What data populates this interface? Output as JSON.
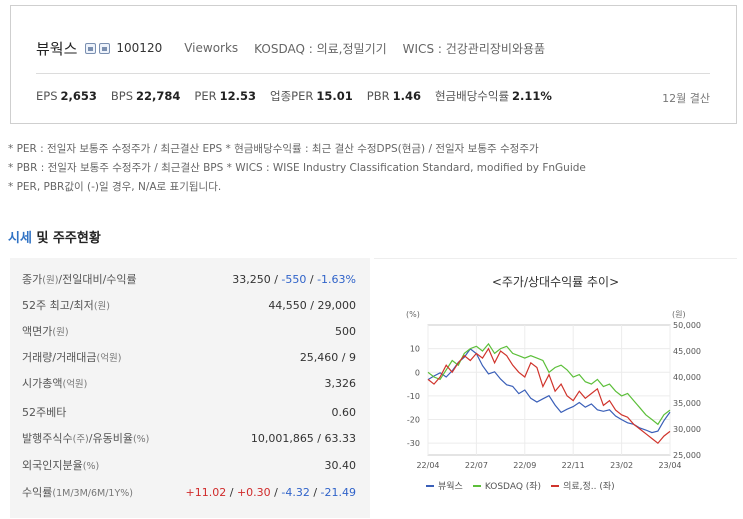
{
  "header": {
    "corp_name": "뷰웍스",
    "code": "100120",
    "eng_name": "Vieworks",
    "market": "KOSDAQ : 의료,정밀기기",
    "wics": "WICS : 건강관리장비와용품",
    "fiscal": "12월 결산",
    "metrics": [
      {
        "label": "EPS",
        "value": "2,653"
      },
      {
        "label": "BPS",
        "value": "22,784"
      },
      {
        "label": "PER",
        "value": "12.53"
      },
      {
        "label": "업종PER",
        "value": "15.01"
      },
      {
        "label": "PBR",
        "value": "1.46"
      },
      {
        "label": "현금배당수익률",
        "value": "2.11%"
      }
    ]
  },
  "notes": [
    "* PER : 전일자 보통주 수정주가 / 최근결산 EPS * 현금배당수익률 : 최근 결산 수정DPS(현금) / 전일자 보통주 수정주가",
    "* PBR : 전일자 보통주 수정주가 / 최근결산 BPS * WICS : WISE Industry Classification Standard, modified by FnGuide",
    "* PER, PBR값이 (-)일 경우, N/A로 표기됩니다."
  ],
  "section": {
    "accent": "시세",
    "rest": " 및 주주현황"
  },
  "table": {
    "rows": [
      {
        "label": "종가",
        "small": "(원)",
        "label2": "/전일대비/수익률",
        "small2": ""
      },
      {
        "label": "52주 최고/최저",
        "small": "(원)",
        "value": "44,550 / 29,000"
      },
      {
        "label": "액면가",
        "small": "(원)",
        "value": "500"
      },
      {
        "label": "거래량/거래대금",
        "small": "(억원)",
        "value": "25,460 / 9"
      },
      {
        "label": "시가총액",
        "small": "(억원)",
        "value": "3,326"
      },
      {
        "label": "52주베타",
        "small": "",
        "value": "0.60"
      },
      {
        "label": "발행주식수",
        "small": "(주)",
        "label2": "/유동비율",
        "small2": "(%)",
        "value": "10,001,865 / 63.33"
      },
      {
        "label": "외국인지분율",
        "small": "(%)",
        "value": "30.40"
      },
      {
        "label": "수익률",
        "small": "(1M/3M/6M/1Y%)",
        "value": ""
      }
    ],
    "close": {
      "price": "33,250",
      "change": "-550",
      "rate": "-1.63%"
    },
    "returns": {
      "m1": "+11.02",
      "m3": "+0.30",
      "m6": "-4.32",
      "y1": "-21.49"
    }
  },
  "chart_data": {
    "type": "line",
    "title": "<주가/상대수익률 추이>",
    "left_unit": "(%)",
    "right_unit": "(원)",
    "x_ticks": [
      "22/04",
      "22/07",
      "22/09",
      "22/11",
      "23/02",
      "23/04"
    ],
    "left_ylim": [
      -35,
      20
    ],
    "left_ticks": [
      10,
      0,
      -10,
      -20,
      -30
    ],
    "right_ylim": [
      25000,
      50000
    ],
    "right_ticks": [
      "50,000",
      "45,000",
      "40,000",
      "35,000",
      "30,000",
      "25,000"
    ],
    "legend_position": "bottom",
    "colors": {
      "price": "#3a5fb8",
      "kosdaq": "#5cbf3a",
      "sector": "#d0342c"
    },
    "series": [
      {
        "name": "뷰웍스",
        "axis": "right",
        "values": [
          39500,
          40200,
          40800,
          40000,
          41200,
          42800,
          43800,
          45400,
          44500,
          42200,
          40600,
          41000,
          39600,
          38500,
          38200,
          36800,
          37500,
          35900,
          35200,
          35800,
          36400,
          34600,
          33200,
          33800,
          34300,
          35100,
          34200,
          34800,
          33700,
          33400,
          33700,
          32500,
          31800,
          31200,
          30900,
          30200,
          29800,
          29300,
          29600,
          31600,
          33250
        ]
      },
      {
        "name": "KOSDAQ (좌)",
        "axis": "left",
        "values": [
          0,
          -2,
          -3,
          1,
          5,
          3,
          8,
          10,
          11,
          9,
          12,
          8,
          10,
          11,
          8,
          7,
          6,
          7,
          6,
          5,
          0,
          2,
          3,
          1,
          -2,
          -1,
          -4,
          -5,
          -3,
          -6,
          -5,
          -8,
          -10,
          -9,
          -12,
          -15,
          -18,
          -20,
          -22,
          -18,
          -16
        ]
      },
      {
        "name": "의료,정.. (좌)",
        "axis": "left",
        "values": [
          -3,
          -5,
          -2,
          3,
          0,
          4,
          7,
          5,
          8,
          6,
          10,
          4,
          9,
          7,
          3,
          0,
          -2,
          4,
          2,
          -6,
          -1,
          -8,
          -5,
          -10,
          -12,
          -8,
          -11,
          -9,
          -7,
          -14,
          -12,
          -16,
          -18,
          -19,
          -22,
          -24,
          -26,
          -28,
          -30,
          -27,
          -25
        ]
      }
    ]
  }
}
